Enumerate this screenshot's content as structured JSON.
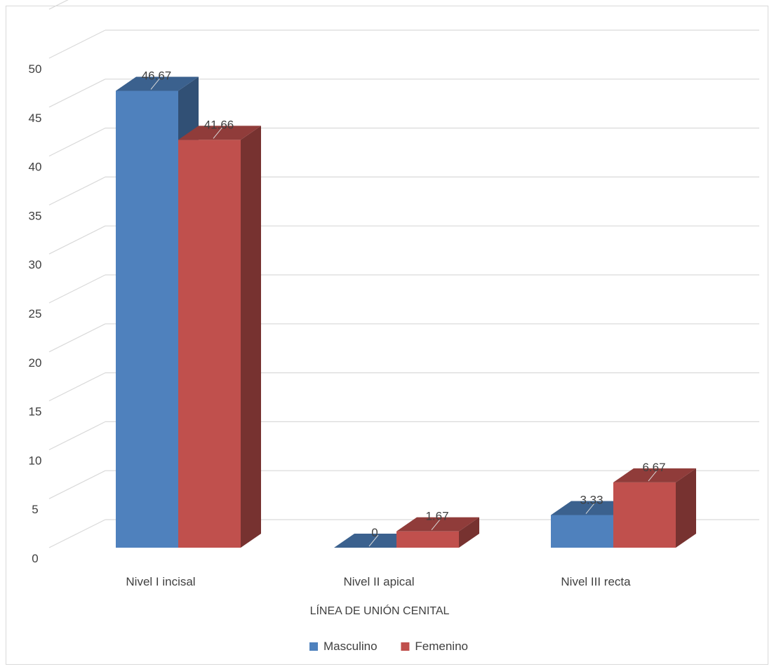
{
  "chart_data": {
    "type": "bar",
    "title": "",
    "xlabel": "LÍNEA DE UNIÓN CENITAL",
    "ylabel": "",
    "ylim": [
      0,
      50
    ],
    "ytick_step": 5,
    "grid": true,
    "legend_position": "bottom",
    "categories": [
      "Nivel I incisal",
      "Nivel II apical",
      "Nivel III recta"
    ],
    "series": [
      {
        "name": "Masculino",
        "values": [
          46.67,
          0,
          3.33
        ],
        "labels": [
          "46.67",
          "0",
          "3.33"
        ],
        "color": "#4f81bd"
      },
      {
        "name": "Femenino",
        "values": [
          41.66,
          1.67,
          6.67
        ],
        "labels": [
          "41.66",
          "1.67",
          "6.67"
        ],
        "color": "#c0504d"
      }
    ]
  }
}
